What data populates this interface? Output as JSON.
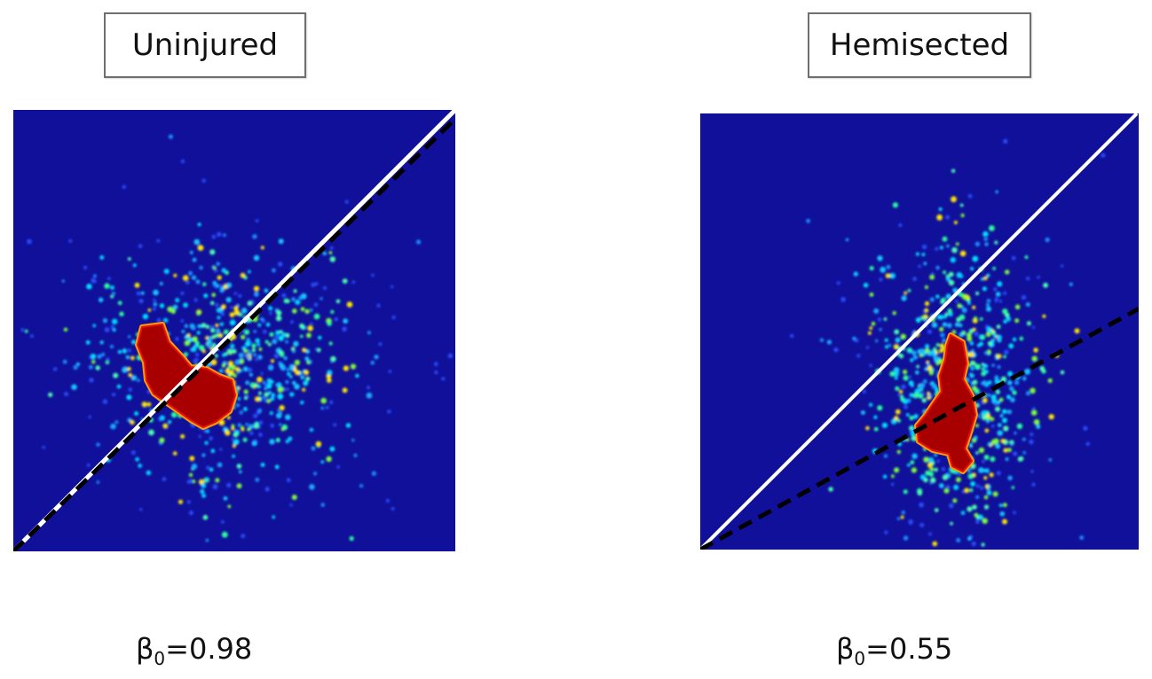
{
  "chart_data": [
    {
      "type": "heatmap",
      "title": "Uninjured",
      "annotation": {
        "symbol": "β",
        "subscript": "0",
        "text": "=0.98"
      },
      "slope": 0.98,
      "lines": [
        {
          "kind": "identity",
          "slope": 1.0,
          "style": "white solid"
        },
        {
          "kind": "fit",
          "slope": 0.98,
          "style": "black dashed"
        }
      ],
      "colormap": "jet",
      "background_color": "#10109a"
    },
    {
      "type": "heatmap",
      "title": "Hemisected",
      "annotation": {
        "symbol": "β",
        "subscript": "0",
        "text": "=0.55"
      },
      "slope": 0.55,
      "lines": [
        {
          "kind": "identity",
          "slope": 1.0,
          "style": "white solid"
        },
        {
          "kind": "fit",
          "slope": 0.55,
          "style": "black dashed"
        }
      ],
      "colormap": "jet",
      "background_color": "#10109a"
    }
  ]
}
